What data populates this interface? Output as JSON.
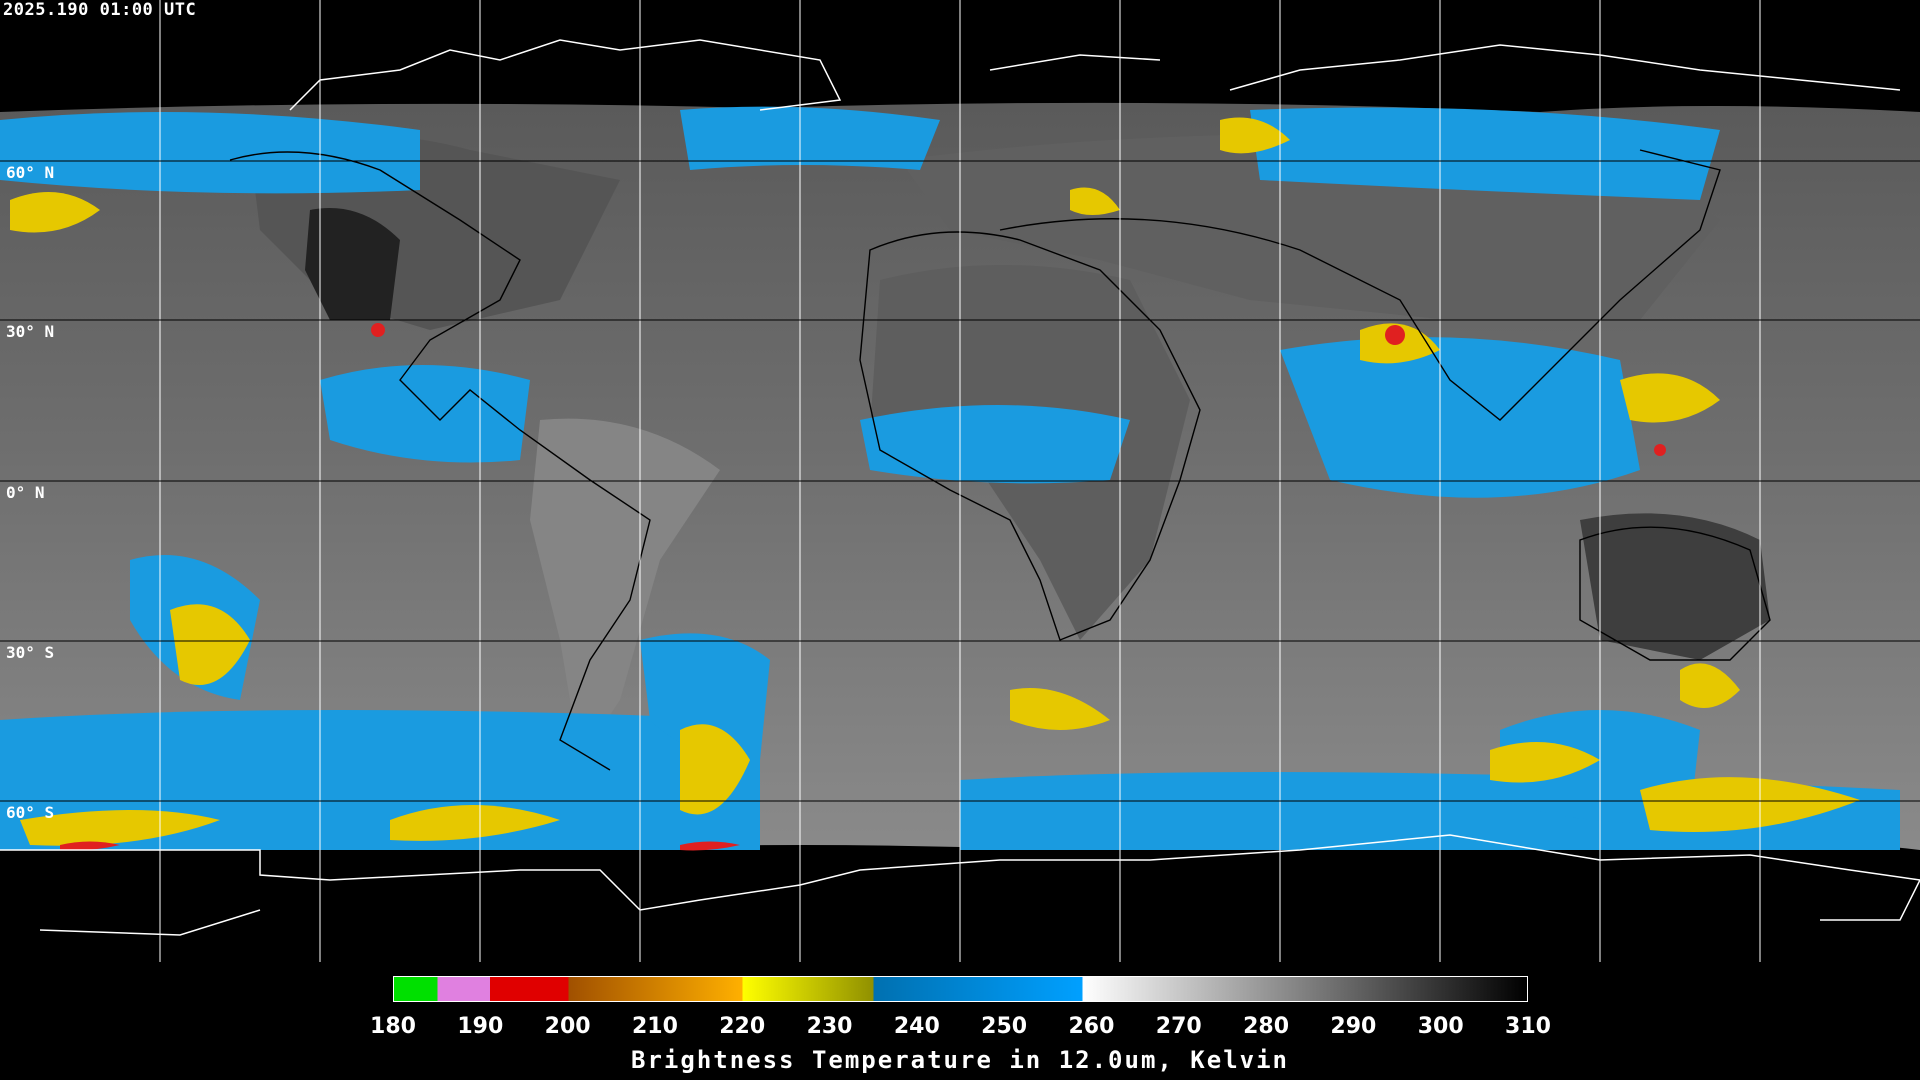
{
  "timestamp": "2025.190 01:00 UTC",
  "lat_labels": [
    "60° N",
    "30° N",
    "0° N",
    "30° S",
    "60° S"
  ],
  "colorbar": {
    "ticks": [
      "180",
      "190",
      "200",
      "210",
      "220",
      "230",
      "240",
      "250",
      "260",
      "270",
      "280",
      "290",
      "300",
      "310"
    ],
    "title": "Brightness Temperature in 12.0um, Kelvin",
    "range": [
      180,
      310
    ],
    "segments": [
      {
        "from": 180,
        "to": 185,
        "color": "#00e000"
      },
      {
        "from": 185,
        "to": 191,
        "color": "#e080e0"
      },
      {
        "from": 191,
        "to": 200,
        "color": "#e00000"
      },
      {
        "from": 200,
        "to": 220,
        "color_start": "#a05000",
        "color_end": "#ffb000"
      },
      {
        "from": 220,
        "to": 235,
        "color_start": "#ffff00",
        "color_end": "#909000"
      },
      {
        "from": 235,
        "to": 259,
        "color_start": "#0070b0",
        "color_end": "#00a0ff"
      },
      {
        "from": 259,
        "to": 310,
        "color_start": "#ffffff",
        "color_end": "#000000"
      }
    ]
  },
  "colors": {
    "background": "#000000",
    "cloud_cold": "#1a9be0",
    "cloud_colder": "#e6c800",
    "cloud_coldest": "#e02020",
    "surface_grey": "#6e6e6e",
    "coastline": "#000000",
    "grid": "#ffffff"
  }
}
